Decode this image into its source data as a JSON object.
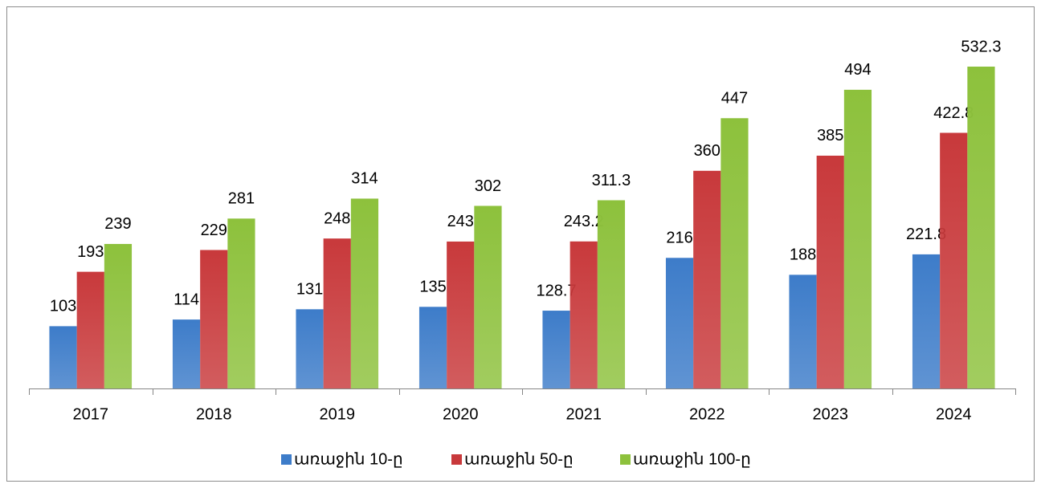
{
  "chart_data": {
    "type": "bar",
    "categories": [
      "2017",
      "2018",
      "2019",
      "2020",
      "2021",
      "2022",
      "2023",
      "2024"
    ],
    "series": [
      {
        "name": "առաջին 10-ը",
        "color": "#3d7cc9",
        "values": [
          103,
          114,
          131,
          135,
          128.7,
          216,
          188,
          221.8
        ]
      },
      {
        "name": "առաջին 50-ը",
        "color": "#c8393b",
        "values": [
          193,
          229,
          248,
          243,
          243.2,
          360,
          385,
          422.8
        ]
      },
      {
        "name": "առաջին 100-ը",
        "color": "#8dc13c",
        "values": [
          239,
          281,
          314,
          302,
          311.3,
          447,
          494,
          532.3
        ]
      }
    ],
    "ylim": [
      0,
      600
    ],
    "legend": "bottom"
  }
}
